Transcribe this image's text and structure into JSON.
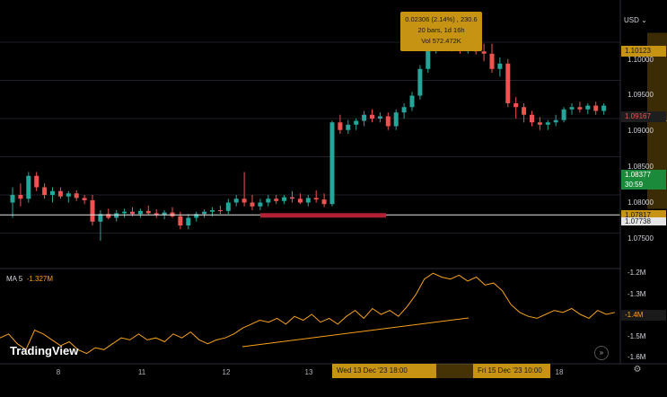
{
  "header": {
    "currency": "USD",
    "currency_caret": "⌄"
  },
  "tooltip": {
    "change": "0.02306 (2.14%) , 230.6",
    "bars": "20 bars, 1d 16h",
    "volume": "Vol 572.472K"
  },
  "price_axis": {
    "ticks": [
      "1.10000",
      "1.09500",
      "1.09000",
      "1.08500",
      "1.08000",
      "1.07500"
    ],
    "labels": {
      "range_high": "1.10123",
      "current": "1.09167",
      "last": "1.08377",
      "countdown": "30:59",
      "range_low": "1.07817",
      "hline": "1.07738"
    }
  },
  "indicator": {
    "name": "MA 5",
    "value": "-1.327M",
    "ticks": [
      "-1.2M",
      "-1.3M",
      "-1.5M",
      "-1.6M"
    ],
    "current": "-1.4M"
  },
  "time_axis": {
    "ticks": [
      "8",
      "11",
      "12",
      "13",
      "18"
    ],
    "highlight_start": "Wed 13 Dec '23   18:00",
    "highlight_end": "Fri 15 Dec '23   10:00"
  },
  "brand": {
    "name": "TradingView"
  },
  "buttons": {
    "goto_realtime": "»",
    "settings": "⚙"
  },
  "colors": {
    "up": "#26a69a",
    "down": "#ef5350",
    "highlight": "#c69312",
    "ma_line": "#f7a21b",
    "hline": "#e6e6e6",
    "zone": "#b22234"
  },
  "chart_data": {
    "type": "candlestick",
    "y_range": [
      1.072,
      1.102
    ],
    "hline": 1.07738,
    "range_highlight": {
      "start_bar": 80,
      "end_bar": 99,
      "high": 1.10123,
      "low": 1.07817
    },
    "candles": [
      [
        1.079,
        1.081,
        1.077,
        1.08
      ],
      [
        1.08,
        1.0815,
        1.0785,
        1.0795
      ],
      [
        1.0795,
        1.083,
        1.079,
        1.0825
      ],
      [
        1.0825,
        1.083,
        1.0805,
        1.081
      ],
      [
        1.081,
        1.0815,
        1.0795,
        1.08
      ],
      [
        1.08,
        1.081,
        1.079,
        1.0805
      ],
      [
        1.0805,
        1.081,
        1.0795,
        1.0798
      ],
      [
        1.0798,
        1.0805,
        1.079,
        1.0802
      ],
      [
        1.0802,
        1.0806,
        1.0792,
        1.0796
      ],
      [
        1.0796,
        1.08,
        1.0788,
        1.0793
      ],
      [
        1.0793,
        1.08,
        1.076,
        1.0765
      ],
      [
        1.0765,
        1.078,
        1.074,
        1.0775
      ],
      [
        1.0775,
        1.0782,
        1.0768,
        1.077
      ],
      [
        1.077,
        1.078,
        1.0765,
        1.0776
      ],
      [
        1.0776,
        1.0782,
        1.077,
        1.0778
      ],
      [
        1.0778,
        1.0784,
        1.0772,
        1.0775
      ],
      [
        1.0775,
        1.0782,
        1.077,
        1.0779
      ],
      [
        1.0779,
        1.0786,
        1.0774,
        1.0776
      ],
      [
        1.0776,
        1.0781,
        1.077,
        1.0774
      ],
      [
        1.0774,
        1.078,
        1.0768,
        1.0777
      ],
      [
        1.0777,
        1.0784,
        1.077,
        1.0772
      ],
      [
        1.0772,
        1.0778,
        1.0755,
        1.076
      ],
      [
        1.076,
        1.0775,
        1.0755,
        1.077
      ],
      [
        1.077,
        1.0778,
        1.0765,
        1.0775
      ],
      [
        1.0775,
        1.0781,
        1.077,
        1.0778
      ],
      [
        1.0778,
        1.0784,
        1.0772,
        1.078
      ],
      [
        1.078,
        1.0786,
        1.0775,
        1.0779
      ],
      [
        1.0779,
        1.0795,
        1.0775,
        1.079
      ],
      [
        1.079,
        1.08,
        1.0785,
        1.0795
      ],
      [
        1.0795,
        1.083,
        1.0785,
        1.079
      ],
      [
        1.079,
        1.08,
        1.078,
        1.0785
      ],
      [
        1.0785,
        1.0795,
        1.078,
        1.079
      ],
      [
        1.079,
        1.08,
        1.0785,
        1.0795
      ],
      [
        1.0795,
        1.08,
        1.0788,
        1.0792
      ],
      [
        1.0792,
        1.08,
        1.0788,
        1.0797
      ],
      [
        1.0797,
        1.0805,
        1.079,
        1.0795
      ],
      [
        1.0795,
        1.0802,
        1.0788,
        1.079
      ],
      [
        1.079,
        1.08,
        1.0785,
        1.0796
      ],
      [
        1.0796,
        1.0806,
        1.079,
        1.0794
      ],
      [
        1.0794,
        1.0802,
        1.0784,
        1.0788
      ],
      [
        1.0788,
        1.0897,
        1.0785,
        1.0895
      ],
      [
        1.0895,
        1.0905,
        1.088,
        1.0885
      ],
      [
        1.0885,
        1.0898,
        1.088,
        1.0892
      ],
      [
        1.0892,
        1.09,
        1.0885,
        1.0897
      ],
      [
        1.0897,
        1.091,
        1.089,
        1.0905
      ],
      [
        1.0905,
        1.0912,
        1.0895,
        1.09
      ],
      [
        1.09,
        1.0908,
        1.0895,
        1.0903
      ],
      [
        1.0903,
        1.0908,
        1.0885,
        1.089
      ],
      [
        1.089,
        1.0912,
        1.0885,
        1.0908
      ],
      [
        1.0908,
        1.092,
        1.09,
        1.0915
      ],
      [
        1.0915,
        1.0935,
        1.091,
        1.093
      ],
      [
        1.093,
        1.097,
        1.0925,
        1.0965
      ],
      [
        1.0965,
        1.0998,
        1.096,
        1.0995
      ],
      [
        1.0995,
        1.1012,
        1.0985,
        1.1002
      ],
      [
        1.1002,
        1.1008,
        1.099,
        1.0994
      ],
      [
        1.0994,
        1.1,
        1.0988,
        1.0992
      ],
      [
        1.0992,
        1.0998,
        1.0985,
        1.099
      ],
      [
        1.099,
        1.1,
        1.0985,
        1.0996
      ],
      [
        1.0996,
        1.1,
        1.0984,
        1.0988
      ],
      [
        1.0988,
        1.0998,
        1.0975,
        1.0985
      ],
      [
        1.0985,
        1.0998,
        1.096,
        1.0965
      ],
      [
        1.0965,
        1.098,
        1.0955,
        1.0972
      ],
      [
        1.0972,
        1.0978,
        1.0915,
        1.092
      ],
      [
        1.092,
        1.0928,
        1.09,
        1.0915
      ],
      [
        1.0915,
        1.092,
        1.0895,
        1.0905
      ],
      [
        1.0905,
        1.091,
        1.089,
        1.0895
      ],
      [
        1.0895,
        1.0902,
        1.0885,
        1.0892
      ],
      [
        1.0892,
        1.0898,
        1.0885,
        1.0895
      ],
      [
        1.0895,
        1.0905,
        1.089,
        1.0898
      ],
      [
        1.0898,
        1.0915,
        1.0895,
        1.0912
      ],
      [
        1.0912,
        1.092,
        1.0905,
        1.0915
      ],
      [
        1.0915,
        1.0922,
        1.0908,
        1.0912
      ],
      [
        1.0912,
        1.092,
        1.0906,
        1.0917
      ],
      [
        1.0917,
        1.0922,
        1.0905,
        1.091
      ],
      [
        1.091,
        1.092,
        1.0905,
        1.0917
      ]
    ],
    "ma5": [
      -1.52,
      -1.5,
      -1.55,
      -1.58,
      -1.48,
      -1.5,
      -1.53,
      -1.56,
      -1.54,
      -1.58,
      -1.6,
      -1.57,
      -1.58,
      -1.55,
      -1.52,
      -1.53,
      -1.5,
      -1.53,
      -1.52,
      -1.54,
      -1.5,
      -1.52,
      -1.49,
      -1.53,
      -1.55,
      -1.53,
      -1.52,
      -1.5,
      -1.47,
      -1.45,
      -1.43,
      -1.44,
      -1.42,
      -1.45,
      -1.41,
      -1.43,
      -1.4,
      -1.44,
      -1.42,
      -1.45,
      -1.41,
      -1.38,
      -1.42,
      -1.37,
      -1.4,
      -1.38,
      -1.41,
      -1.36,
      -1.3,
      -1.22,
      -1.19,
      -1.21,
      -1.22,
      -1.2,
      -1.23,
      -1.21,
      -1.25,
      -1.24,
      -1.28,
      -1.35,
      -1.39,
      -1.41,
      -1.42,
      -1.4,
      -1.38,
      -1.39,
      -1.37,
      -1.4,
      -1.42,
      -1.38,
      -1.4,
      -1.39
    ]
  }
}
